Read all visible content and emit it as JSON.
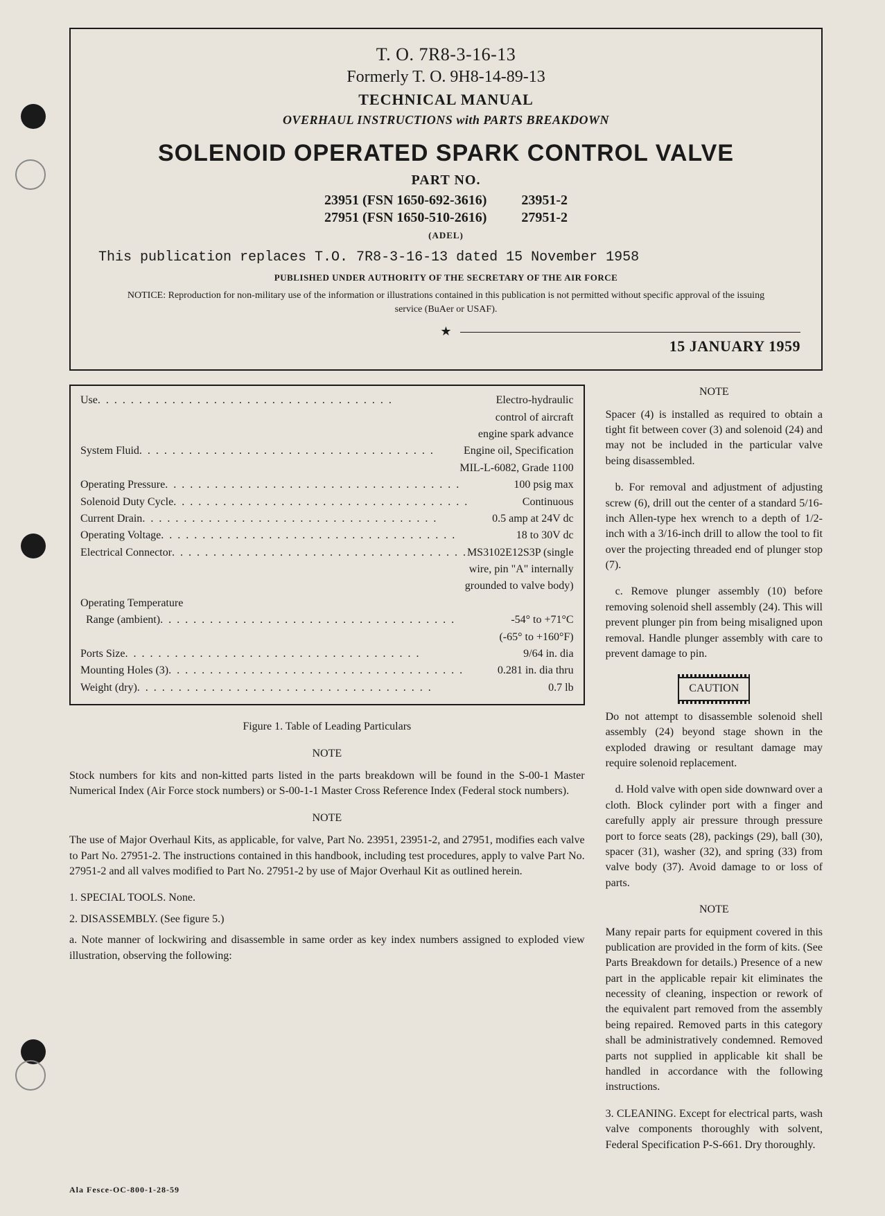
{
  "header": {
    "to_number": "T. O. 7R8-3-16-13",
    "formerly": "Formerly T. O. 9H8-14-89-13",
    "manual_type": "TECHNICAL MANUAL",
    "subtitle": "OVERHAUL INSTRUCTIONS with PARTS BREAKDOWN",
    "main_title": "SOLENOID OPERATED SPARK CONTROL VALVE",
    "part_label": "PART NO.",
    "parts": [
      {
        "left": "23951 (FSN 1650-692-3616)",
        "right": "23951-2"
      },
      {
        "left": "27951 (FSN 1650-510-2616)",
        "right": "27951-2"
      }
    ],
    "adel": "(ADEL)",
    "replaces": "This publication replaces T.O. 7R8-3-16-13 dated 15 November 1958",
    "authority": "PUBLISHED UNDER AUTHORITY OF THE SECRETARY OF THE AIR FORCE",
    "notice": "NOTICE: Reproduction for non-military use of the information or illustrations contained in this publication is not permitted without specific approval of the issuing service (BuAer or USAF).",
    "date": "15 JANUARY 1959"
  },
  "specs": [
    {
      "label": "Use",
      "value": "Electro-hydraulic",
      "cont": [
        "control of aircraft",
        "engine spark advance"
      ]
    },
    {
      "label": "System Fluid",
      "value": "Engine oil, Specification",
      "cont": [
        "MIL-L-6082, Grade 1100"
      ]
    },
    {
      "label": "Operating Pressure",
      "value": "100 psig max"
    },
    {
      "label": "Solenoid Duty Cycle",
      "value": "Continuous"
    },
    {
      "label": "Current Drain",
      "value": "0.5 amp at 24V dc"
    },
    {
      "label": "Operating Voltage",
      "value": "18 to 30V dc"
    },
    {
      "label": "Electrical Connector",
      "value": "MS3102E12S3P (single",
      "cont": [
        "wire, pin \"A\" internally",
        "grounded to valve body)"
      ]
    },
    {
      "label": "Operating Temperature",
      "value": ""
    },
    {
      "label": "  Range (ambient)",
      "value": "-54° to +71°C",
      "cont": [
        "(-65° to +160°F)"
      ]
    },
    {
      "label": "Ports Size",
      "value": "9/64 in. dia"
    },
    {
      "label": "Mounting Holes (3)",
      "value": "0.281 in. dia thru"
    },
    {
      "label": "Weight (dry)",
      "value": "0.7 lb"
    }
  ],
  "fig_caption": "Figure 1. Table of Leading Particulars",
  "left": {
    "note1_heading": "NOTE",
    "note1": "Stock numbers for kits and non-kitted parts listed in the parts breakdown will be found in the S-00-1 Master Numerical Index (Air Force stock numbers) or S-00-1-1 Master Cross Reference Index (Federal stock numbers).",
    "note2_heading": "NOTE",
    "note2": "The use of Major Overhaul Kits, as applicable, for valve, Part No. 23951, 23951-2, and 27951, modifies each valve to Part No. 27951-2. The instructions contained in this handbook, including test procedures, apply to valve Part No. 27951-2 and all valves modified to Part No. 27951-2 by use of Major Overhaul Kit as outlined herein.",
    "sec1": "1. SPECIAL TOOLS. None.",
    "sec2": "2. DISASSEMBLY. (See figure 5.)",
    "sec2a": "a. Note manner of lockwiring and disassemble in same order as key index numbers assigned to exploded view illustration, observing the following:"
  },
  "right": {
    "note1_heading": "NOTE",
    "note1": "Spacer (4) is installed as required to obtain a tight fit between cover (3) and solenoid (24) and may not be included in the particular valve being disassembled.",
    "para_b": "b. For removal and adjustment of adjusting screw (6), drill out the center of a standard 5/16-inch Allen-type hex wrench to a depth of 1/2-inch with a 3/16-inch drill to allow the tool to fit over the projecting threaded end of plunger stop (7).",
    "para_c": "c. Remove plunger assembly (10) before removing solenoid shell assembly (24). This will prevent plunger pin from being misaligned upon removal. Handle plunger assembly with care to prevent damage to pin.",
    "caution_label": "CAUTION",
    "caution": "Do not attempt to disassemble solenoid shell assembly (24) beyond stage shown in the exploded drawing or resultant damage may require solenoid replacement.",
    "para_d": "d. Hold valve with open side downward over a cloth. Block cylinder port with a finger and carefully apply air pressure through pressure port to force seats (28), packings (29), ball (30), spacer (31), washer (32), and spring (33) from valve body (37). Avoid damage to or loss of parts.",
    "note2_heading": "NOTE",
    "note2": "Many repair parts for equipment covered in this publication are provided in the form of kits. (See Parts Breakdown for details.) Presence of a new part in the applicable repair kit eliminates the necessity of cleaning, inspection or rework of the equivalent part removed from the assembly being repaired. Removed parts in this category shall be administratively condemned. Removed parts not supplied in applicable kit shall be handled in accordance with the following instructions.",
    "sec3": "3. CLEANING. Except for electrical parts, wash valve components thoroughly with solvent, Federal Specification P-S-661. Dry thoroughly."
  },
  "footer_code": "Ala Fesce-OC-800-1-28-59"
}
